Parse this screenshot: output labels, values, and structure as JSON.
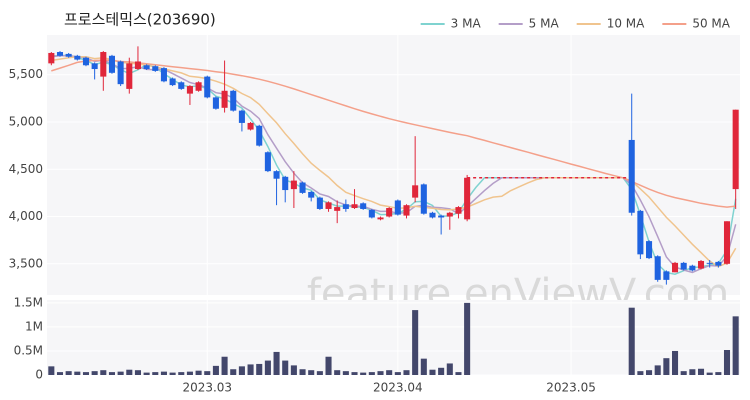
{
  "watermark": "feature.enViewV.com",
  "chart_data": [
    {
      "type": "candlestick",
      "title": "프로스테믹스(203690)",
      "legend_position": "top-right",
      "up_color": "#e0263a",
      "down_color": "#1f63e0",
      "xlim": [
        -0.5,
        79.5
      ],
      "ylim": [
        3170,
        5920
      ],
      "yticks": [
        {
          "value": 3500,
          "label": "3,500"
        },
        {
          "value": 4000,
          "label": "4,000"
        },
        {
          "value": 4500,
          "label": "4,500"
        },
        {
          "value": 5000,
          "label": "5,000"
        },
        {
          "value": 5500,
          "label": "5,500"
        }
      ],
      "grid": true,
      "open": [
        5620,
        5740,
        5720,
        5700,
        5680,
        5620,
        5480,
        5700,
        5640,
        5350,
        5560,
        5600,
        5590,
        5570,
        5460,
        5420,
        5300,
        5330,
        5480,
        5260,
        5150,
        5330,
        5120,
        4920,
        4960,
        4680,
        4480,
        4420,
        4290,
        4360,
        4260,
        4200,
        4080,
        4060,
        4130,
        4090,
        4140,
        4070,
        3970,
        4000,
        4170,
        4010,
        4200,
        4340,
        4040,
        4010,
        4000,
        4030,
        3970,
        null,
        null,
        null,
        null,
        null,
        null,
        null,
        null,
        null,
        null,
        null,
        null,
        null,
        null,
        null,
        null,
        null,
        null,
        4810,
        4060,
        3740,
        3580,
        3420,
        3410,
        3510,
        3480,
        3450,
        3510,
        3520,
        3500,
        4290
      ],
      "high": [
        5740,
        5750,
        5730,
        5710,
        5690,
        5630,
        5750,
        5710,
        5650,
        5680,
        5800,
        5610,
        5600,
        5580,
        5470,
        5430,
        5390,
        5430,
        5490,
        5270,
        5650,
        5340,
        5130,
        5000,
        4970,
        4690,
        4490,
        4430,
        4480,
        4370,
        4270,
        4210,
        4160,
        4170,
        4180,
        4290,
        4150,
        4080,
        4000,
        4100,
        4180,
        4130,
        4850,
        4350,
        4050,
        4020,
        4050,
        4110,
        4440,
        null,
        null,
        null,
        null,
        null,
        null,
        null,
        null,
        null,
        null,
        null,
        null,
        null,
        null,
        null,
        null,
        null,
        null,
        5300,
        4070,
        3750,
        3590,
        3430,
        3520,
        3520,
        3490,
        3540,
        3540,
        3530,
        3950,
        5130
      ],
      "low": [
        5600,
        5690,
        5680,
        5650,
        5590,
        5450,
        5330,
        5510,
        5380,
        5300,
        5550,
        5550,
        5530,
        5420,
        5380,
        5340,
        5180,
        5320,
        5250,
        5130,
        5100,
        5110,
        4900,
        4910,
        4740,
        4470,
        4120,
        4150,
        4090,
        4240,
        4160,
        4070,
        4050,
        3930,
        4050,
        4080,
        4070,
        3980,
        3960,
        3990,
        4010,
        3980,
        4150,
        4020,
        3980,
        3810,
        3860,
        3980,
        3950,
        null,
        null,
        null,
        null,
        null,
        null,
        null,
        null,
        null,
        null,
        null,
        null,
        null,
        null,
        null,
        null,
        null,
        null,
        4010,
        3550,
        3550,
        3310,
        3280,
        3410,
        3430,
        3420,
        3440,
        3460,
        3460,
        3490,
        4080
      ],
      "close": [
        5730,
        5700,
        5690,
        5660,
        5600,
        5560,
        5740,
        5520,
        5400,
        5620,
        5640,
        5560,
        5540,
        5430,
        5390,
        5350,
        5380,
        5420,
        5260,
        5140,
        5330,
        5120,
        4990,
        4990,
        4750,
        4480,
        4400,
        4280,
        4380,
        4250,
        4200,
        4080,
        4150,
        4100,
        4080,
        4130,
        4080,
        3990,
        3990,
        4090,
        4020,
        4120,
        4330,
        4030,
        3990,
        3990,
        4040,
        4100,
        4410,
        null,
        null,
        null,
        null,
        null,
        null,
        null,
        null,
        null,
        null,
        null,
        null,
        null,
        null,
        null,
        null,
        null,
        null,
        4040,
        3600,
        3560,
        3330,
        3330,
        3510,
        3440,
        3430,
        3530,
        3500,
        3480,
        3950,
        5130
      ],
      "series": [
        {
          "name": "3 MA",
          "color": "#7fd3d0",
          "values": [
            5700,
            5700,
            5707,
            5683,
            5650,
            5607,
            5633,
            5607,
            5553,
            5513,
            5553,
            5607,
            5580,
            5510,
            5453,
            5390,
            5373,
            5383,
            5353,
            5273,
            5243,
            5197,
            5147,
            5033,
            4910,
            4740,
            4543,
            4387,
            4353,
            4303,
            4277,
            4177,
            4143,
            4110,
            4110,
            4103,
            4097,
            4067,
            4020,
            4023,
            4033,
            4077,
            4157,
            4160,
            4117,
            4003,
            4007,
            4043,
            4183,
            4307,
            4410,
            4410,
            4410,
            4410,
            4410,
            4410,
            4410,
            4410,
            4410,
            4410,
            4410,
            4410,
            4410,
            4410,
            4410,
            4410,
            4410,
            4287,
            4017,
            3733,
            3497,
            3407,
            3390,
            3427,
            3460,
            3467,
            3487,
            3503,
            3643,
            4187
          ]
        },
        {
          "name": "5 MA",
          "color": "#b49ec8",
          "values": [
            5690,
            5700,
            5700,
            5690,
            5678,
            5642,
            5652,
            5616,
            5564,
            5568,
            5584,
            5556,
            5552,
            5558,
            5512,
            5464,
            5418,
            5394,
            5360,
            5310,
            5296,
            5254,
            5168,
            5114,
            5036,
            4866,
            4722,
            4580,
            4458,
            4358,
            4302,
            4238,
            4212,
            4156,
            4122,
            4108,
            4108,
            4076,
            4054,
            4056,
            4034,
            4042,
            4108,
            4118,
            4098,
            4092,
            4082,
            4030,
            4106,
            4190,
            4274,
            4350,
            4410,
            4410,
            4410,
            4410,
            4410,
            4410,
            4410,
            4410,
            4410,
            4410,
            4410,
            4410,
            4410,
            4410,
            4410,
            4336,
            4174,
            3998,
            3788,
            3572,
            3466,
            3434,
            3408,
            3448,
            3482,
            3476,
            3578,
            3918
          ]
        },
        {
          "name": "10 MA",
          "color": "#f0c48e",
          "values": [
            5650,
            5665,
            5680,
            5690,
            5690,
            5670,
            5680,
            5660,
            5630,
            5623,
            5613,
            5599,
            5584,
            5561,
            5540,
            5519,
            5483,
            5473,
            5459,
            5431,
            5400,
            5356,
            5301,
            5258,
            5187,
            5088,
            4990,
            4876,
            4772,
            4664,
            4564,
            4488,
            4417,
            4328,
            4256,
            4221,
            4189,
            4160,
            4121,
            4105,
            4087,
            4091,
            4109,
            4097,
            4088,
            4074,
            4070,
            4081,
            4099,
            4138,
            4177,
            4206,
            4214,
            4272,
            4314,
            4356,
            4392,
            4410,
            4410,
            4410,
            4410,
            4410,
            4410,
            4410,
            4410,
            4410,
            4410,
            4373,
            4292,
            4207,
            4099,
            3991,
            3901,
            3804,
            3706,
            3618,
            3527,
            3471,
            3507,
            3664
          ]
        },
        {
          "name": "50 MA",
          "color": "#f4a08a",
          "values": [
            5540,
            5570,
            5600,
            5630,
            5645,
            5650,
            5655,
            5650,
            5640,
            5635,
            5625,
            5615,
            5605,
            5595,
            5585,
            5575,
            5565,
            5555,
            5545,
            5532,
            5520,
            5505,
            5490,
            5472,
            5452,
            5430,
            5405,
            5378,
            5350,
            5320,
            5290,
            5260,
            5230,
            5200,
            5170,
            5140,
            5112,
            5085,
            5060,
            5035,
            5012,
            4990,
            4970,
            4950,
            4930,
            4910,
            4890,
            4872,
            4855,
            4830,
            4805,
            4780,
            4755,
            4730,
            4705,
            4680,
            4655,
            4630,
            4605,
            4580,
            4555,
            4530,
            4505,
            4480,
            4455,
            4432,
            4410,
            4370,
            4330,
            4290,
            4255,
            4225,
            4200,
            4180,
            4160,
            4140,
            4125,
            4110,
            4100,
            4110
          ]
        }
      ]
    },
    {
      "type": "bar",
      "color": "#43476b",
      "xlim": [
        -0.5,
        79.5
      ],
      "ylim": [
        0,
        1560000
      ],
      "yticks": [
        0,
        {
          "value": 500000,
          "label": "0.5M"
        },
        {
          "value": 1000000,
          "label": "1M"
        },
        {
          "value": 1500000,
          "label": "1.5M"
        }
      ],
      "xticks": [
        {
          "value": 18,
          "label": "2023.03"
        },
        {
          "value": 40,
          "label": "2023.04"
        },
        {
          "value": 60,
          "label": "2023.05"
        }
      ],
      "grid": true,
      "values": [
        180000,
        60000,
        80000,
        70000,
        60000,
        80000,
        100000,
        60000,
        70000,
        110000,
        100000,
        50000,
        60000,
        70000,
        50000,
        60000,
        70000,
        90000,
        80000,
        190000,
        380000,
        120000,
        180000,
        220000,
        230000,
        300000,
        480000,
        300000,
        200000,
        120000,
        100000,
        80000,
        380000,
        100000,
        80000,
        60000,
        50000,
        60000,
        80000,
        100000,
        60000,
        100000,
        1350000,
        340000,
        110000,
        150000,
        240000,
        60000,
        1500000,
        null,
        null,
        null,
        null,
        null,
        null,
        null,
        null,
        null,
        null,
        null,
        null,
        null,
        null,
        null,
        null,
        null,
        null,
        1400000,
        80000,
        100000,
        200000,
        350000,
        500000,
        80000,
        120000,
        130000,
        50000,
        60000,
        520000,
        1220000
      ]
    }
  ]
}
